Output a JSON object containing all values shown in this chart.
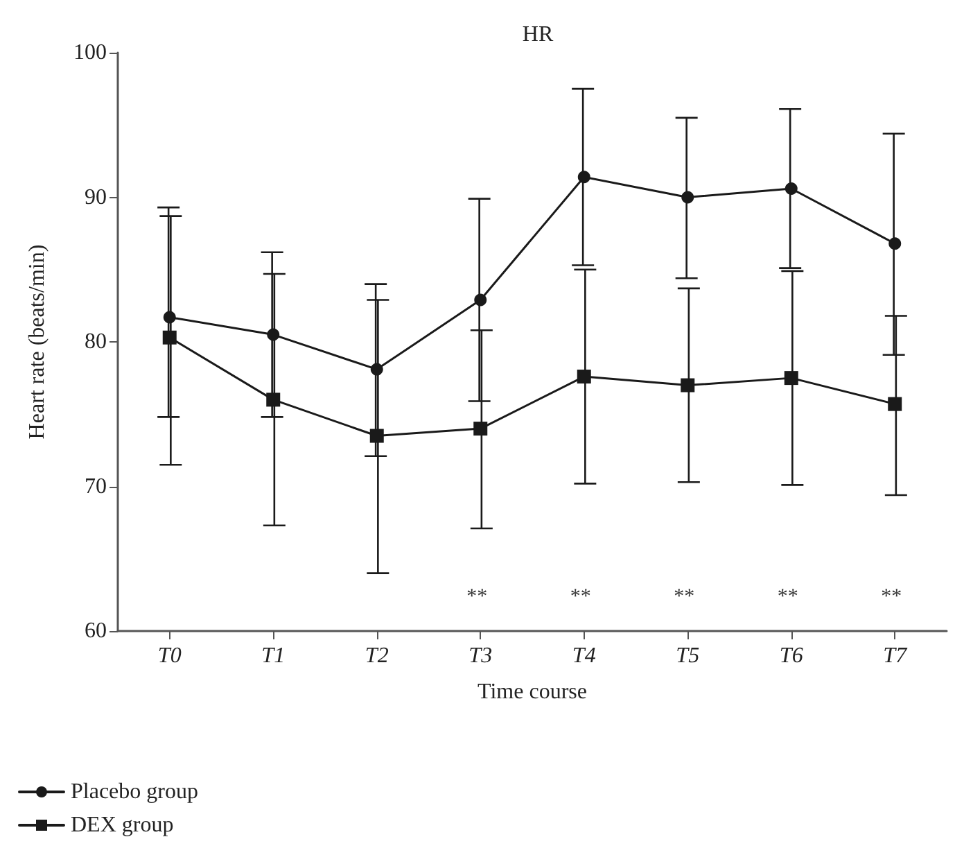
{
  "chart_data": {
    "type": "line",
    "title": "HR",
    "xlabel": "Time course",
    "ylabel": "Heart rate (beats/min)",
    "categories": [
      "T0",
      "T1",
      "T2",
      "T3",
      "T4",
      "T5",
      "T6",
      "T7"
    ],
    "series": [
      {
        "name": "Placebo group",
        "color": "#1a1a1a",
        "marker": "circle",
        "values": [
          81.7,
          80.5,
          78.1,
          82.9,
          91.4,
          90.0,
          90.6,
          86.8
        ],
        "errors": [
          [
            74.8,
            89.3
          ],
          [
            74.8,
            86.2
          ],
          [
            72.1,
            84.0
          ],
          [
            75.9,
            89.9
          ],
          [
            85.3,
            97.5
          ],
          [
            84.4,
            95.5
          ],
          [
            85.1,
            96.1
          ],
          [
            79.1,
            94.4
          ]
        ]
      },
      {
        "name": "DEX group",
        "color": "#1a1a1a",
        "marker": "square",
        "values": [
          80.3,
          76.0,
          73.5,
          74.0,
          77.6,
          77.0,
          77.5,
          75.7
        ],
        "errors": [
          [
            71.5,
            88.7
          ],
          [
            67.3,
            84.7
          ],
          [
            64.0,
            82.9
          ],
          [
            67.1,
            80.8
          ],
          [
            70.2,
            85.0
          ],
          [
            70.3,
            83.7
          ],
          [
            70.1,
            84.9
          ],
          [
            69.4,
            81.8
          ]
        ]
      }
    ],
    "annotations": [
      "**",
      "**",
      "**",
      "**",
      "**"
    ],
    "ylim": [
      60,
      100
    ],
    "yticks": [
      60,
      70,
      80,
      90,
      100
    ],
    "grid": false,
    "legend": "bottom left",
    "line_style": "solid"
  }
}
